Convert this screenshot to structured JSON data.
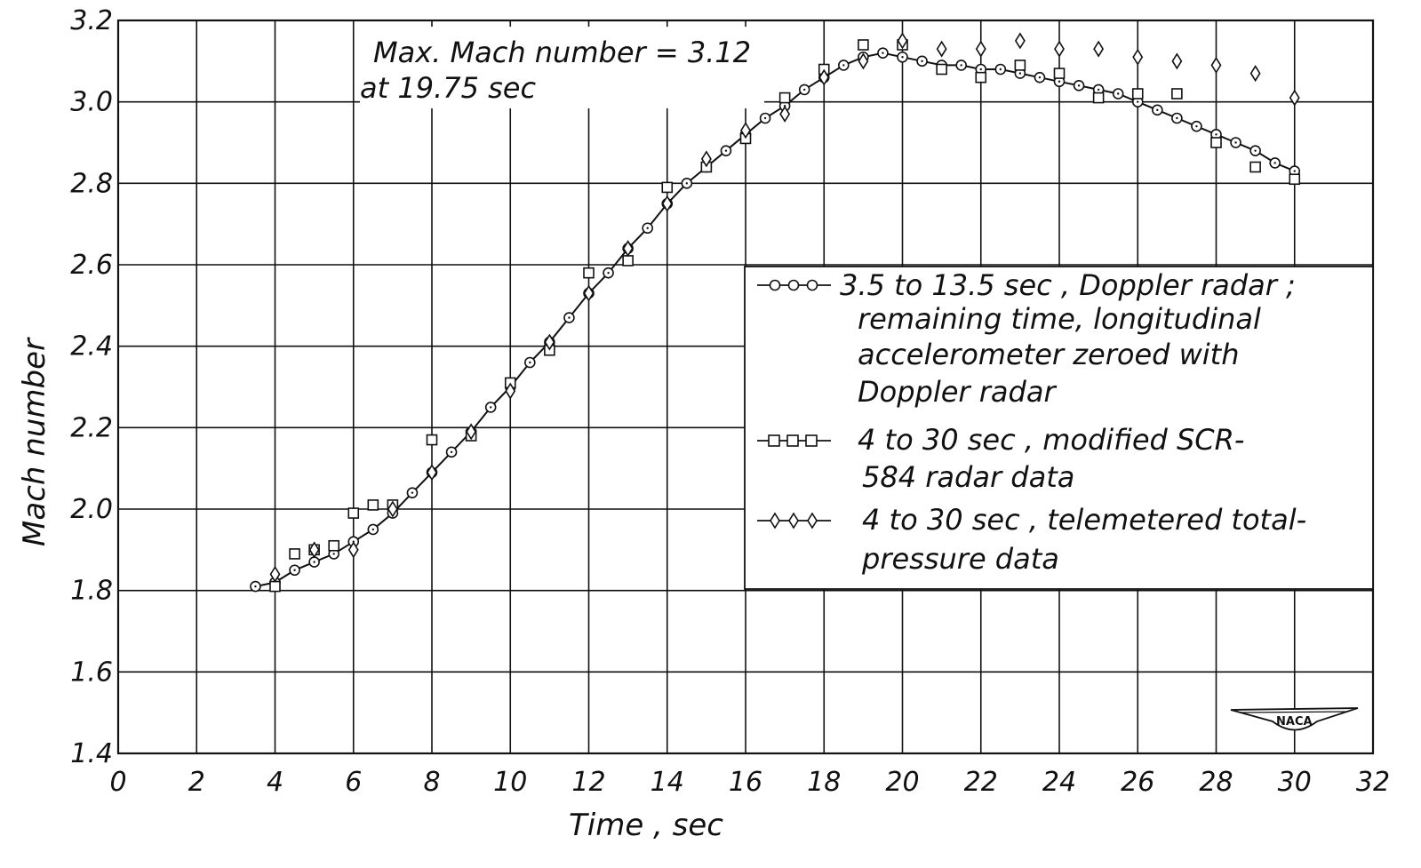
{
  "chart_data": {
    "type": "scatter",
    "title": "",
    "xlabel": "Time , sec",
    "ylabel": "Mach number",
    "xlim": [
      0,
      32
    ],
    "ylim": [
      1.4,
      3.2
    ],
    "grid": true,
    "xticks": [
      0,
      2,
      4,
      6,
      8,
      10,
      12,
      14,
      16,
      18,
      20,
      22,
      24,
      26,
      28,
      30,
      32
    ],
    "xtick_labels": [
      "0",
      "2",
      "4",
      "6",
      "8",
      "10",
      "12",
      "14",
      "16",
      "18",
      "20",
      "22",
      "24",
      "26",
      "28",
      "30",
      "32"
    ],
    "yticks": [
      1.4,
      1.6,
      1.8,
      2.0,
      2.2,
      2.4,
      2.6,
      2.8,
      3.0,
      3.2
    ],
    "ytick_labels": [
      "1.4",
      "1.6",
      "1.8",
      "2.0",
      "2.2",
      "2.4",
      "2.6",
      "2.8",
      "3.0",
      "3.2"
    ],
    "annotation": {
      "line1": "Max. Mach number = 3.12",
      "line2": "at  19.75  sec"
    },
    "legend_placement": "center-right",
    "series": [
      {
        "name": "3.5 to 13.5 sec, Doppler radar; remaining time, longitudinal accelerometer zeroed with Doppler radar",
        "legend_lines": [
          "3.5  to  13.5  sec , Doppler  radar ;",
          "remaining  time, longitudinal",
          "accelerometer  zeroed  with",
          "Doppler  radar"
        ],
        "marker": "circle",
        "connected": true,
        "x": [
          3.5,
          4,
          4.5,
          5,
          5.5,
          6,
          6.5,
          7,
          7.5,
          8,
          8.5,
          9,
          9.5,
          10,
          10.5,
          11,
          11.5,
          12,
          12.5,
          13,
          13.5,
          14,
          14.5,
          15,
          15.5,
          16,
          16.5,
          17,
          17.5,
          18,
          18.5,
          19,
          19.5,
          20,
          20.5,
          21,
          21.5,
          22,
          22.5,
          23,
          23.5,
          24,
          24.5,
          25,
          25.5,
          26,
          26.5,
          27,
          27.5,
          28,
          28.5,
          29,
          29.5,
          30
        ],
        "y": [
          1.81,
          1.82,
          1.85,
          1.87,
          1.89,
          1.92,
          1.95,
          1.99,
          2.04,
          2.09,
          2.14,
          2.19,
          2.25,
          2.3,
          2.36,
          2.41,
          2.47,
          2.53,
          2.58,
          2.64,
          2.69,
          2.75,
          2.8,
          2.84,
          2.88,
          2.92,
          2.96,
          2.99,
          3.03,
          3.06,
          3.09,
          3.11,
          3.12,
          3.11,
          3.1,
          3.09,
          3.09,
          3.08,
          3.08,
          3.07,
          3.06,
          3.05,
          3.04,
          3.03,
          3.02,
          3.0,
          2.98,
          2.96,
          2.94,
          2.92,
          2.9,
          2.88,
          2.85,
          2.83
        ]
      },
      {
        "name": "4 to 30 sec, modified SCR-584 radar data",
        "legend_lines": [
          "4  to  30  sec ,  modified  SCR-",
          "584  radar  data"
        ],
        "marker": "square",
        "connected": false,
        "x": [
          4,
          4.5,
          5,
          5.5,
          6,
          6.5,
          7,
          8,
          9,
          10,
          11,
          12,
          13,
          14,
          15,
          16,
          17,
          18,
          19,
          20,
          21,
          22,
          23,
          24,
          25,
          26,
          27,
          28,
          29,
          30
        ],
        "y": [
          1.81,
          1.89,
          1.9,
          1.91,
          1.99,
          2.01,
          2.01,
          2.17,
          2.18,
          2.31,
          2.39,
          2.58,
          2.61,
          2.79,
          2.84,
          2.91,
          3.01,
          3.08,
          3.14,
          3.14,
          3.08,
          3.06,
          3.09,
          3.07,
          3.01,
          3.02,
          3.02,
          2.9,
          2.84,
          2.81
        ]
      },
      {
        "name": "4 to 30 sec, telemetered total-pressure data",
        "legend_lines": [
          "4  to  30  sec , telemetered  total-",
          "pressure  data"
        ],
        "marker": "diamond",
        "connected": false,
        "x": [
          4,
          5,
          6,
          7,
          8,
          9,
          10,
          11,
          12,
          13,
          14,
          15,
          16,
          17,
          18,
          19,
          20,
          21,
          22,
          23,
          24,
          25,
          26,
          27,
          28,
          29,
          30
        ],
        "y": [
          1.84,
          1.9,
          1.9,
          2.0,
          2.09,
          2.19,
          2.29,
          2.41,
          2.53,
          2.64,
          2.75,
          2.86,
          2.93,
          2.97,
          3.06,
          3.1,
          3.15,
          3.13,
          3.13,
          3.15,
          3.13,
          3.13,
          3.11,
          3.1,
          3.09,
          3.07,
          3.01
        ]
      }
    ]
  },
  "logo": {
    "text": "NACA"
  }
}
